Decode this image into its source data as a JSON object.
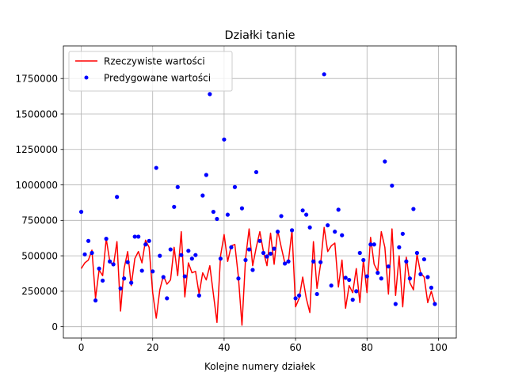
{
  "chart_data": {
    "type": "line",
    "title": "Działki tanie",
    "xlabel": "Kolejne numery działek",
    "ylabel": "",
    "xlim": [
      -5,
      105
    ],
    "ylim": [
      -80000,
      1980000
    ],
    "x_ticks": [
      0,
      20,
      40,
      60,
      80,
      100
    ],
    "x_tick_labels": [
      "0",
      "20",
      "40",
      "60",
      "80",
      "100"
    ],
    "y_ticks": [
      0,
      250000,
      500000,
      750000,
      1000000,
      1250000,
      1500000,
      1750000
    ],
    "y_tick_labels": [
      "0",
      "250000",
      "500000",
      "750000",
      "1000000",
      "1250000",
      "1500000",
      "1750000"
    ],
    "grid": true,
    "legend_position": "top-left",
    "series": [
      {
        "name": "Rzeczywiste wartości",
        "style": "line",
        "color": "#ff0000",
        "x": [
          0,
          1,
          2,
          3,
          4,
          5,
          6,
          7,
          8,
          9,
          10,
          11,
          12,
          13,
          14,
          15,
          16,
          17,
          18,
          19,
          20,
          21,
          22,
          23,
          24,
          25,
          26,
          27,
          28,
          29,
          30,
          31,
          32,
          33,
          34,
          35,
          36,
          37,
          38,
          39,
          40,
          41,
          42,
          43,
          44,
          45,
          46,
          47,
          48,
          49,
          50,
          51,
          52,
          53,
          54,
          55,
          56,
          57,
          58,
          59,
          60,
          61,
          62,
          63,
          64,
          65,
          66,
          67,
          68,
          69,
          70,
          71,
          72,
          73,
          74,
          75,
          76,
          77,
          78,
          79,
          80,
          81,
          82,
          83,
          84,
          85,
          86,
          87,
          88,
          89,
          90,
          91,
          92,
          93,
          94,
          95,
          96,
          97,
          98,
          99
        ],
        "values": [
          410000,
          450000,
          470000,
          540000,
          200000,
          400000,
          360000,
          620000,
          460000,
          430000,
          600000,
          110000,
          410000,
          530000,
          290000,
          480000,
          530000,
          450000,
          610000,
          560000,
          240000,
          60000,
          260000,
          360000,
          300000,
          330000,
          560000,
          360000,
          670000,
          210000,
          450000,
          380000,
          390000,
          230000,
          380000,
          330000,
          430000,
          230000,
          30000,
          500000,
          650000,
          460000,
          570000,
          580000,
          350000,
          10000,
          480000,
          690000,
          430000,
          560000,
          670000,
          530000,
          430000,
          660000,
          440000,
          680000,
          560000,
          450000,
          460000,
          680000,
          140000,
          200000,
          350000,
          200000,
          100000,
          600000,
          270000,
          440000,
          700000,
          530000,
          570000,
          590000,
          280000,
          470000,
          130000,
          290000,
          240000,
          410000,
          170000,
          470000,
          240000,
          630000,
          440000,
          390000,
          670000,
          560000,
          230000,
          690000,
          220000,
          500000,
          140000,
          490000,
          310000,
          260000,
          510000,
          380000,
          350000,
          170000,
          250000,
          160000
        ]
      },
      {
        "name": "Predygowane wartości",
        "style": "scatter",
        "color": "#0000ff",
        "x": [
          0,
          1,
          2,
          3,
          4,
          5,
          6,
          7,
          8,
          9,
          10,
          11,
          12,
          13,
          14,
          15,
          16,
          17,
          18,
          19,
          20,
          21,
          22,
          23,
          24,
          25,
          26,
          27,
          28,
          29,
          30,
          31,
          32,
          33,
          34,
          35,
          36,
          37,
          38,
          39,
          40,
          41,
          42,
          43,
          44,
          45,
          46,
          47,
          48,
          49,
          50,
          51,
          52,
          53,
          54,
          55,
          56,
          57,
          58,
          59,
          60,
          61,
          62,
          63,
          64,
          65,
          66,
          67,
          68,
          69,
          70,
          71,
          72,
          73,
          74,
          75,
          76,
          77,
          78,
          79,
          80,
          81,
          82,
          83,
          84,
          85,
          86,
          87,
          88,
          89,
          90,
          91,
          92,
          93,
          94,
          95,
          96,
          97,
          98,
          99
        ],
        "values": [
          810000,
          510000,
          605000,
          520000,
          185000,
          410000,
          325000,
          620000,
          460000,
          440000,
          915000,
          270000,
          340000,
          455000,
          310000,
          635000,
          635000,
          395000,
          580000,
          605000,
          390000,
          1120000,
          500000,
          350000,
          200000,
          545000,
          845000,
          985000,
          505000,
          355000,
          535000,
          480000,
          505000,
          220000,
          925000,
          1070000,
          1640000,
          810000,
          760000,
          480000,
          1320000,
          790000,
          560000,
          985000,
          340000,
          835000,
          470000,
          545000,
          400000,
          1090000,
          605000,
          520000,
          495000,
          515000,
          550000,
          670000,
          780000,
          445000,
          460000,
          680000,
          200000,
          220000,
          820000,
          790000,
          700000,
          460000,
          230000,
          455000,
          1780000,
          715000,
          290000,
          670000,
          825000,
          645000,
          345000,
          330000,
          190000,
          250000,
          520000,
          470000,
          355000,
          580000,
          580000,
          380000,
          340000,
          1165000,
          425000,
          995000,
          160000,
          560000,
          655000,
          460000,
          340000,
          830000,
          520000,
          370000,
          475000,
          350000,
          275000,
          160000
        ]
      }
    ]
  }
}
